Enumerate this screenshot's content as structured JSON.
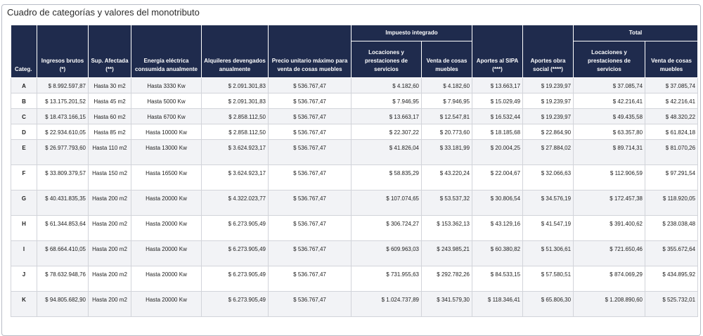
{
  "title": "Cuadro de categorías y valores del monotributo",
  "headers": {
    "categ": "Categ.",
    "ingresos": "Ingresos brutos (*)",
    "sup": "Sup. Afectada (**)",
    "energia": "Energía eléctrica consumida anualmente",
    "alquileres": "Alquileres devengados anualmente",
    "precio": "Precio unitario máximo para venta de cosas muebles",
    "impuesto_group": "Impuesto integrado",
    "imp_locaciones": "Locaciones y prestaciones de servicios",
    "imp_venta": "Venta de cosas muebles",
    "sipa": "Aportes al SIPA (***)",
    "obra": "Aportes obra social (****)",
    "total_group": "Total",
    "tot_locaciones": "Locaciones y prestaciones de servicios",
    "tot_venta": "Venta de cosas muebles"
  },
  "rows": [
    {
      "categ": "A",
      "ingresos": "$ 8.992.597,87",
      "sup": "Hasta 30 m2",
      "energia": "Hasta 3330 Kw",
      "alquileres": "$ 2.091.301,83",
      "precio": "$ 536.767,47",
      "imp_loc": "$ 4.182,60",
      "imp_venta": "$ 4.182,60",
      "sipa": "$ 13.663,17",
      "obra": "$ 19.239,97",
      "tot_loc": "$ 37.085,74",
      "tot_venta": "$ 37.085,74"
    },
    {
      "categ": "B",
      "ingresos": "$ 13.175.201,52",
      "sup": "Hasta 45 m2",
      "energia": "Hasta 5000 Kw",
      "alquileres": "$ 2.091.301,83",
      "precio": "$ 536.767,47",
      "imp_loc": "$ 7.946,95",
      "imp_venta": "$ 7.946,95",
      "sipa": "$ 15.029,49",
      "obra": "$ 19.239,97",
      "tot_loc": "$ 42.216,41",
      "tot_venta": "$ 42.216,41"
    },
    {
      "categ": "C",
      "ingresos": "$ 18.473.166,15",
      "sup": "Hasta 60 m2",
      "energia": "Hasta 6700 Kw",
      "alquileres": "$ 2.858.112,50",
      "precio": "$ 536.767,47",
      "imp_loc": "$ 13.663,17",
      "imp_venta": "$ 12.547,81",
      "sipa": "$ 16.532,44",
      "obra": "$ 19.239,97",
      "tot_loc": "$ 49.435,58",
      "tot_venta": "$ 48.320,22"
    },
    {
      "categ": "D",
      "ingresos": "$ 22.934.610,05",
      "sup": "Hasta 85 m2",
      "energia": "Hasta 10000 Kw",
      "alquileres": "$ 2.858.112,50",
      "precio": "$ 536.767,47",
      "imp_loc": "$ 22.307,22",
      "imp_venta": "$ 20.773,60",
      "sipa": "$ 18.185,68",
      "obra": "$ 22.864,90",
      "tot_loc": "$ 63.357,80",
      "tot_venta": "$ 61.824,18"
    },
    {
      "categ": "E",
      "ingresos": "$ 26.977.793,60",
      "sup": "Hasta 110 m2",
      "energia": "Hasta 13000 Kw",
      "alquileres": "$ 3.624.923,17",
      "precio": "$ 536.767,47",
      "imp_loc": "$ 41.826,04",
      "imp_venta": "$ 33.181,99",
      "sipa": "$ 20.004,25",
      "obra": "$ 27.884,02",
      "tot_loc": "$ 89.714,31",
      "tot_venta": "$ 81.070,26"
    },
    {
      "categ": "F",
      "ingresos": "$ 33.809.379,57",
      "sup": "Hasta 150 m2",
      "energia": "Hasta 16500 Kw",
      "alquileres": "$ 3.624.923,17",
      "precio": "$ 536.767,47",
      "imp_loc": "$ 58.835,29",
      "imp_venta": "$ 43.220,24",
      "sipa": "$ 22.004,67",
      "obra": "$ 32.066,63",
      "tot_loc": "$ 112.906,59",
      "tot_venta": "$ 97.291,54"
    },
    {
      "categ": "G",
      "ingresos": "$ 40.431.835,35",
      "sup": "Hasta 200 m2",
      "energia": "Hasta 20000 Kw",
      "alquileres": "$ 4.322.023,77",
      "precio": "$ 536.767,47",
      "imp_loc": "$ 107.074,65",
      "imp_venta": "$ 53.537,32",
      "sipa": "$ 30.806,54",
      "obra": "$ 34.576,19",
      "tot_loc": "$ 172.457,38",
      "tot_venta": "$ 118.920,05"
    },
    {
      "categ": "H",
      "ingresos": "$ 61.344.853,64",
      "sup": "Hasta 200 m2",
      "energia": "Hasta 20000 Kw",
      "alquileres": "$ 6.273.905,49",
      "precio": "$ 536.767,47",
      "imp_loc": "$ 306.724,27",
      "imp_venta": "$ 153.362,13",
      "sipa": "$ 43.129,16",
      "obra": "$ 41.547,19",
      "tot_loc": "$ 391.400,62",
      "tot_venta": "$ 238.038,48"
    },
    {
      "categ": "I",
      "ingresos": "$ 68.664.410,05",
      "sup": "Hasta 200 m2",
      "energia": "Hasta 20000 Kw",
      "alquileres": "$ 6.273.905,49",
      "precio": "$ 536.767,47",
      "imp_loc": "$ 609.963,03",
      "imp_venta": "$ 243.985,21",
      "sipa": "$ 60.380,82",
      "obra": "$ 51.306,61",
      "tot_loc": "$ 721.650,46",
      "tot_venta": "$ 355.672,64"
    },
    {
      "categ": "J",
      "ingresos": "$ 78.632.948,76",
      "sup": "Hasta 200 m2",
      "energia": "Hasta 20000 Kw",
      "alquileres": "$ 6.273.905,49",
      "precio": "$ 536.767,47",
      "imp_loc": "$ 731.955,63",
      "imp_venta": "$ 292.782,26",
      "sipa": "$ 84.533,15",
      "obra": "$ 57.580,51",
      "tot_loc": "$ 874.069,29",
      "tot_venta": "$ 434.895,92"
    },
    {
      "categ": "K",
      "ingresos": "$ 94.805.682,90",
      "sup": "Hasta 200 m2",
      "energia": "Hasta 20000 Kw",
      "alquileres": "$ 6.273.905,49",
      "precio": "$ 536.767,47",
      "imp_loc": "$ 1.024.737,89",
      "imp_venta": "$ 341.579,30",
      "sipa": "$ 118.346,41",
      "obra": "$ 65.806,30",
      "tot_loc": "$ 1.208.890,60",
      "tot_venta": "$ 525.732,01"
    }
  ]
}
